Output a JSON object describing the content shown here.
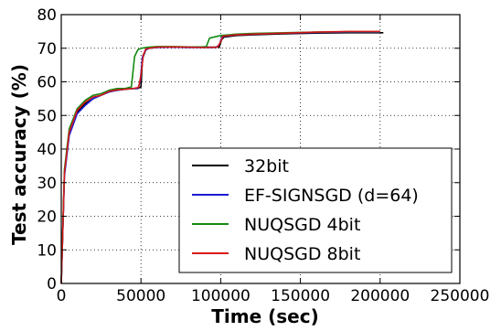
{
  "chart_data": {
    "type": "line",
    "title": "",
    "xlabel": "Time (sec)",
    "ylabel": "Test accuracy (%)",
    "xlim": [
      0,
      250000
    ],
    "ylim": [
      0,
      80
    ],
    "xticks": [
      0,
      50000,
      100000,
      150000,
      200000,
      250000
    ],
    "yticks": [
      0,
      10,
      20,
      30,
      40,
      50,
      60,
      70,
      80
    ],
    "grid": true,
    "legend_position": "lower-right",
    "series": [
      {
        "name": "32bit",
        "color": "#000000",
        "x": [
          0,
          2000,
          5000,
          10000,
          15000,
          20000,
          25000,
          30000,
          35000,
          40000,
          45000,
          48000,
          50000,
          51000,
          53000,
          55000,
          60000,
          70000,
          80000,
          90000,
          99000,
          100500,
          102000,
          110000,
          120000,
          140000,
          160000,
          180000,
          200000,
          202000
        ],
        "y": [
          0,
          33,
          45,
          51,
          53.5,
          55,
          56,
          57,
          57.5,
          57.8,
          58,
          58,
          58.5,
          67,
          69.5,
          70,
          70.3,
          70.3,
          70.4,
          70.3,
          70.3,
          72.5,
          73.3,
          73.8,
          74,
          74.3,
          74.5,
          74.6,
          74.6,
          74.6
        ]
      },
      {
        "name": "EF-SIGNSGD (d=64)",
        "color": "#1a1ad6",
        "x": [
          0,
          2000,
          5000,
          10000,
          15000,
          20000,
          25000,
          30000,
          35000,
          40000,
          45000,
          48000,
          49500,
          51000,
          53000,
          55000,
          60000,
          70000,
          80000,
          90000,
          97000,
          99000,
          101000,
          110000,
          120000,
          140000,
          160000,
          180000,
          200000
        ],
        "y": [
          0,
          32,
          44,
          50.5,
          53,
          55,
          56,
          57,
          57.5,
          57.8,
          58,
          58,
          60,
          67.5,
          69.5,
          70,
          70.2,
          70.3,
          70.2,
          70.2,
          70.2,
          71,
          73.5,
          74,
          74.2,
          74.5,
          74.7,
          74.8,
          74.8
        ]
      },
      {
        "name": "NUQSGD 4bit",
        "color": "#138a13",
        "x": [
          0,
          2000,
          5000,
          10000,
          15000,
          20000,
          25000,
          30000,
          35000,
          40000,
          44000,
          46000,
          48000,
          50000,
          55000,
          60000,
          70000,
          80000,
          88000,
          91000,
          93000,
          100000,
          110000,
          120000,
          140000,
          160000,
          180000,
          200000
        ],
        "y": [
          0,
          34,
          46,
          52,
          54.5,
          56,
          56.5,
          57.5,
          58,
          58,
          58.5,
          67.5,
          69.5,
          70,
          70.3,
          70.5,
          70.5,
          70.4,
          70.4,
          70.5,
          73,
          73.8,
          74.2,
          74.4,
          74.6,
          74.8,
          74.9,
          74.9
        ]
      },
      {
        "name": "NUQSGD 8bit",
        "color": "#d61a1a",
        "x": [
          0,
          2000,
          5000,
          10000,
          15000,
          20000,
          25000,
          30000,
          35000,
          40000,
          45000,
          48500,
          50000,
          51500,
          53000,
          55000,
          60000,
          70000,
          80000,
          90000,
          98000,
          99500,
          101500,
          110000,
          120000,
          140000,
          160000,
          180000,
          200000
        ],
        "y": [
          0,
          33,
          45,
          51.5,
          54,
          55.5,
          56,
          57.2,
          57.6,
          57.8,
          58,
          58.3,
          62,
          68,
          69.8,
          70,
          70.3,
          70.4,
          70.3,
          70.2,
          70.3,
          71.5,
          73.6,
          74,
          74.2,
          74.5,
          74.8,
          75,
          75
        ]
      }
    ]
  }
}
